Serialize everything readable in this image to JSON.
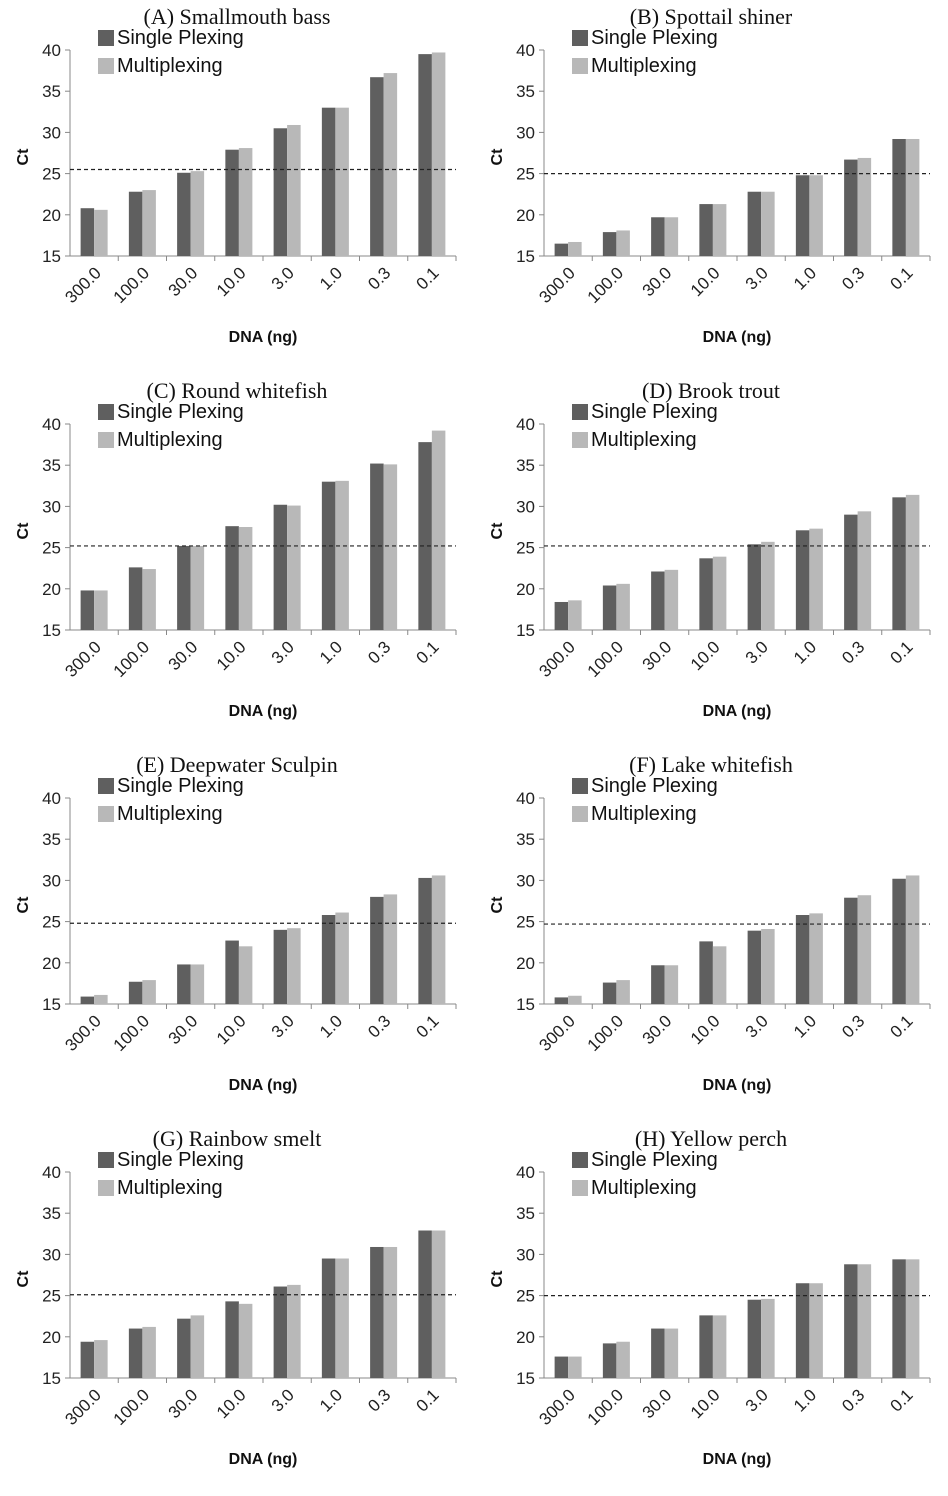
{
  "chart_data": [
    {
      "type": "bar",
      "title": "(A) Smallmouth bass",
      "xlabel": "DNA (ng)",
      "ylabel": "Ct",
      "ylim": [
        15,
        40
      ],
      "yticks": [
        15,
        20,
        25,
        30,
        35,
        40
      ],
      "categories": [
        "300.0",
        "100.0",
        "30.0",
        "10.0",
        "3.0",
        "1.0",
        "0.3",
        "0.1"
      ],
      "threshold": 25.5,
      "legend_position": "top-left",
      "series": [
        {
          "name": "Single Plexing",
          "color": "#5f5f5f",
          "values": [
            20.8,
            22.8,
            25.1,
            27.9,
            30.5,
            33.0,
            36.7,
            39.5
          ]
        },
        {
          "name": "Multiplexing",
          "color": "#b8b8b8",
          "values": [
            20.6,
            23.0,
            25.3,
            28.1,
            30.9,
            33.0,
            37.2,
            39.7
          ]
        }
      ]
    },
    {
      "type": "bar",
      "title": "(B) Spottail shiner",
      "xlabel": "DNA (ng)",
      "ylabel": "Ct",
      "ylim": [
        15,
        40
      ],
      "yticks": [
        15,
        20,
        25,
        30,
        35,
        40
      ],
      "categories": [
        "300.0",
        "100.0",
        "30.0",
        "10.0",
        "3.0",
        "1.0",
        "0.3",
        "0.1"
      ],
      "threshold": 25.0,
      "legend_position": "top-left",
      "series": [
        {
          "name": "Single Plexing",
          "color": "#5f5f5f",
          "values": [
            16.5,
            17.9,
            19.7,
            21.3,
            22.8,
            24.8,
            26.7,
            29.2
          ]
        },
        {
          "name": "Multiplexing",
          "color": "#b8b8b8",
          "values": [
            16.7,
            18.1,
            19.7,
            21.3,
            22.8,
            24.8,
            26.9,
            29.2
          ]
        }
      ]
    },
    {
      "type": "bar",
      "title": "(C) Round whitefish",
      "xlabel": "DNA (ng)",
      "ylabel": "Ct",
      "ylim": [
        15,
        40
      ],
      "yticks": [
        15,
        20,
        25,
        30,
        35,
        40
      ],
      "categories": [
        "300.0",
        "100.0",
        "30.0",
        "10.0",
        "3.0",
        "1.0",
        "0.3",
        "0.1"
      ],
      "threshold": 25.2,
      "legend_position": "top-left",
      "series": [
        {
          "name": "Single Plexing",
          "color": "#5f5f5f",
          "values": [
            19.8,
            22.6,
            25.2,
            27.6,
            30.2,
            33.0,
            35.2,
            37.8
          ]
        },
        {
          "name": "Multiplexing",
          "color": "#b8b8b8",
          "values": [
            19.8,
            22.4,
            25.2,
            27.5,
            30.1,
            33.1,
            35.1,
            39.2
          ]
        }
      ]
    },
    {
      "type": "bar",
      "title": "(D) Brook trout",
      "xlabel": "DNA (ng)",
      "ylabel": "Ct",
      "ylim": [
        15,
        40
      ],
      "yticks": [
        15,
        20,
        25,
        30,
        35,
        40
      ],
      "categories": [
        "300.0",
        "100.0",
        "30.0",
        "10.0",
        "3.0",
        "1.0",
        "0.3",
        "0.1"
      ],
      "threshold": 25.2,
      "legend_position": "top-left",
      "series": [
        {
          "name": "Single Plexing",
          "color": "#5f5f5f",
          "values": [
            18.4,
            20.4,
            22.1,
            23.7,
            25.4,
            27.1,
            29.0,
            31.1
          ]
        },
        {
          "name": "Multiplexing",
          "color": "#b8b8b8",
          "values": [
            18.6,
            20.6,
            22.3,
            23.9,
            25.7,
            27.3,
            29.4,
            31.4
          ]
        }
      ]
    },
    {
      "type": "bar",
      "title": "(E) Deepwater Sculpin",
      "xlabel": "DNA (ng)",
      "ylabel": "Ct",
      "ylim": [
        15,
        40
      ],
      "yticks": [
        15,
        20,
        25,
        30,
        35,
        40
      ],
      "categories": [
        "300.0",
        "100.0",
        "30.0",
        "10.0",
        "3.0",
        "1.0",
        "0.3",
        "0.1"
      ],
      "threshold": 24.8,
      "legend_position": "top-left",
      "series": [
        {
          "name": "Single Plexing",
          "color": "#5f5f5f",
          "values": [
            15.9,
            17.7,
            19.8,
            22.7,
            24.0,
            25.8,
            28.0,
            30.3
          ]
        },
        {
          "name": "Multiplexing",
          "color": "#b8b8b8",
          "values": [
            16.1,
            17.9,
            19.8,
            22.0,
            24.2,
            26.1,
            28.3,
            30.6
          ]
        }
      ]
    },
    {
      "type": "bar",
      "title": "(F) Lake whitefish",
      "xlabel": "DNA (ng)",
      "ylabel": "Ct",
      "ylim": [
        15,
        40
      ],
      "yticks": [
        15,
        20,
        25,
        30,
        35,
        40
      ],
      "categories": [
        "300.0",
        "100.0",
        "30.0",
        "10.0",
        "3.0",
        "1.0",
        "0.3",
        "0.1"
      ],
      "threshold": 24.7,
      "legend_position": "top-left",
      "series": [
        {
          "name": "Single Plexing",
          "color": "#5f5f5f",
          "values": [
            15.8,
            17.6,
            19.7,
            22.6,
            23.9,
            25.8,
            27.9,
            30.2
          ]
        },
        {
          "name": "Multiplexing",
          "color": "#b8b8b8",
          "values": [
            16.0,
            17.9,
            19.7,
            22.0,
            24.1,
            26.0,
            28.2,
            30.6
          ]
        }
      ]
    },
    {
      "type": "bar",
      "title": "(G) Rainbow smelt",
      "xlabel": "DNA (ng)",
      "ylabel": "Ct",
      "ylim": [
        15,
        40
      ],
      "yticks": [
        15,
        20,
        25,
        30,
        35,
        40
      ],
      "categories": [
        "300.0",
        "100.0",
        "30.0",
        "10.0",
        "3.0",
        "1.0",
        "0.3",
        "0.1"
      ],
      "threshold": 25.1,
      "legend_position": "top-left",
      "series": [
        {
          "name": "Single Plexing",
          "color": "#5f5f5f",
          "values": [
            19.4,
            21.0,
            22.2,
            24.3,
            26.1,
            29.5,
            30.9,
            32.9
          ]
        },
        {
          "name": "Multiplexing",
          "color": "#b8b8b8",
          "values": [
            19.6,
            21.2,
            22.6,
            24.0,
            26.3,
            29.5,
            30.9,
            32.9
          ]
        }
      ]
    },
    {
      "type": "bar",
      "title": "(H) Yellow perch",
      "xlabel": "DNA (ng)",
      "ylabel": "Ct",
      "ylim": [
        15,
        40
      ],
      "yticks": [
        15,
        20,
        25,
        30,
        35,
        40
      ],
      "categories": [
        "300.0",
        "100.0",
        "30.0",
        "10.0",
        "3.0",
        "1.0",
        "0.3",
        "0.1"
      ],
      "threshold": 25.0,
      "legend_position": "top-left",
      "series": [
        {
          "name": "Single Plexing",
          "color": "#5f5f5f",
          "values": [
            17.6,
            19.2,
            21.0,
            22.6,
            24.5,
            26.5,
            28.8,
            29.4
          ]
        },
        {
          "name": "Multiplexing",
          "color": "#b8b8b8",
          "values": [
            17.6,
            19.4,
            21.0,
            22.6,
            24.6,
            26.5,
            28.8,
            29.4
          ]
        }
      ]
    }
  ]
}
